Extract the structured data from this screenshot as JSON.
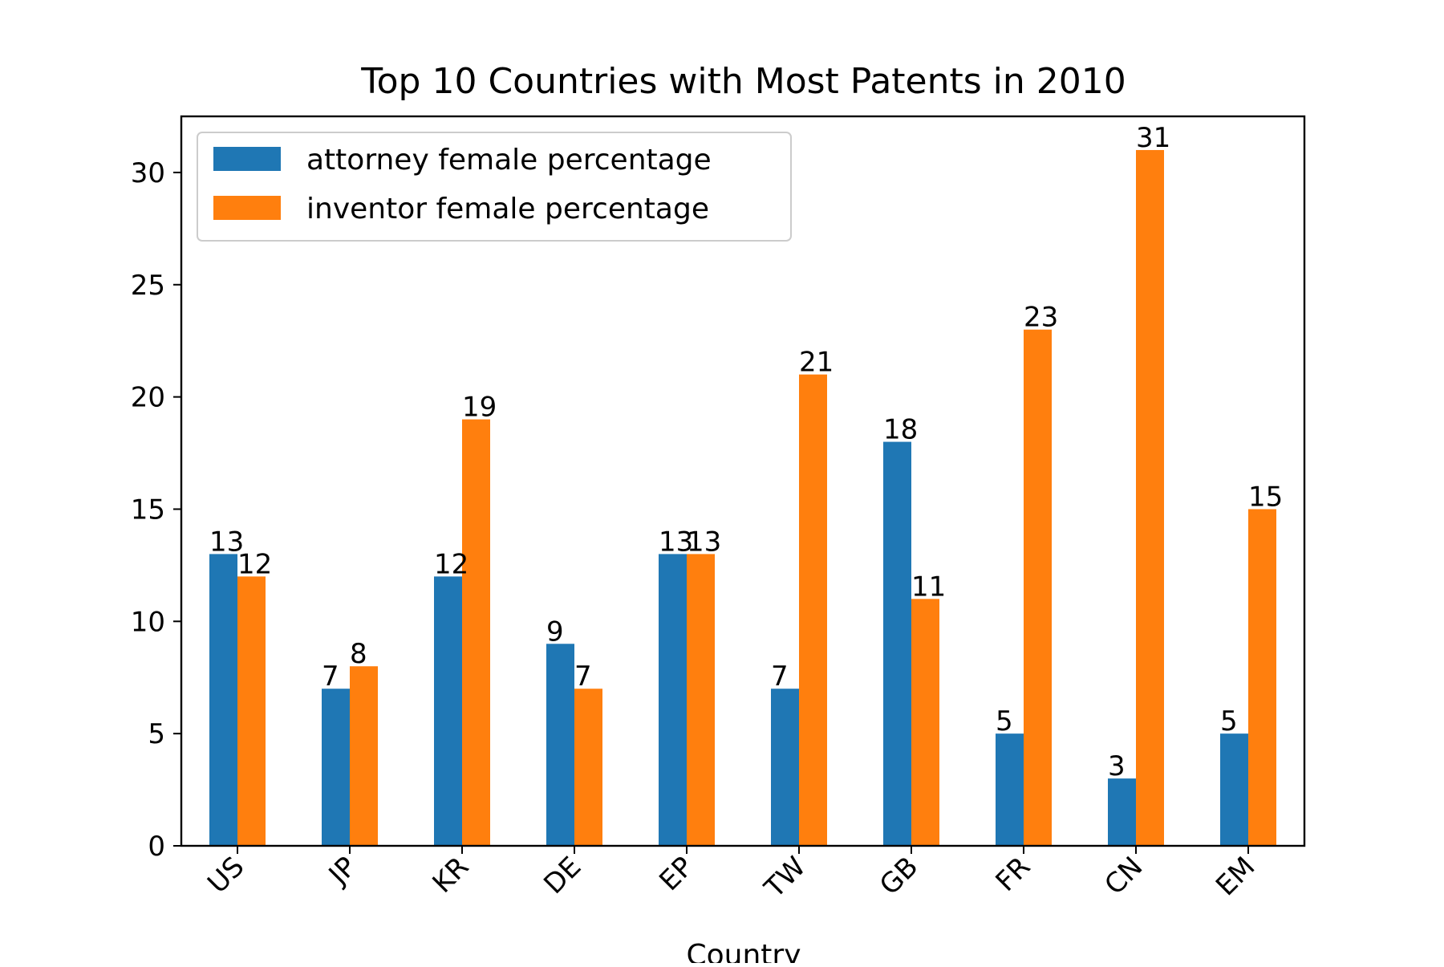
{
  "chart_data": {
    "type": "bar",
    "title": "Top 10 Countries with Most Patents in 2010",
    "xlabel": "Country",
    "ylabel": "",
    "categories": [
      "US",
      "JP",
      "KR",
      "DE",
      "EP",
      "TW",
      "GB",
      "FR",
      "CN",
      "EM"
    ],
    "series": [
      {
        "name": "attorney female percentage",
        "color": "#1f77b4",
        "values": [
          13,
          7,
          12,
          9,
          13,
          7,
          18,
          5,
          3,
          5
        ]
      },
      {
        "name": "inventor female percentage",
        "color": "#ff7f0e",
        "values": [
          12,
          8,
          19,
          7,
          13,
          21,
          11,
          23,
          31,
          15
        ]
      }
    ],
    "ylim": [
      0,
      32.5
    ],
    "yticks": [
      0,
      5,
      10,
      15,
      20,
      25,
      30
    ],
    "grid": false,
    "legend_position": "top-left",
    "data_labels": true,
    "xtick_rotation": 45
  }
}
